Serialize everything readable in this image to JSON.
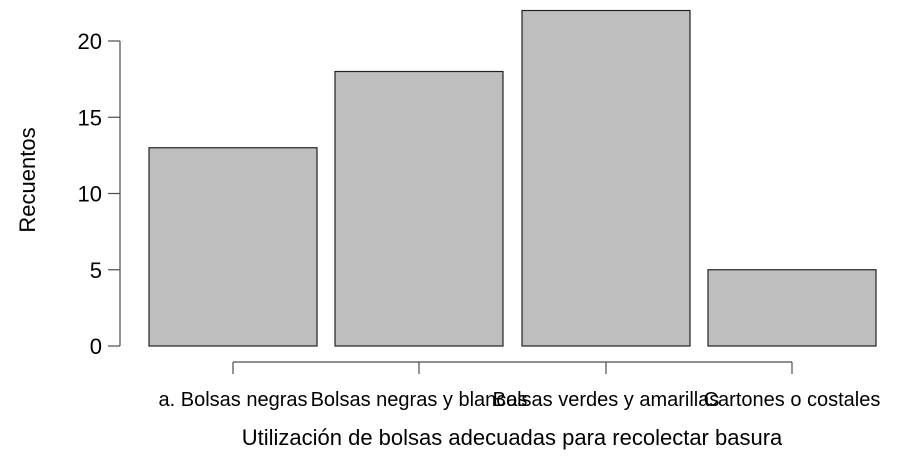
{
  "chart_data": {
    "type": "bar",
    "categories": [
      "a. Bolsas negras",
      "Bolsas negras y blancas",
      "Bolsas verdes y amarillas",
      "Cartones o costales"
    ],
    "values": [
      13,
      18,
      22,
      5
    ],
    "title": "",
    "xlabel": "Utilización de bolsas adecuadas para recolectar basura",
    "ylabel": "Recuentos",
    "ylim": [
      0,
      22
    ],
    "yticks": [
      0,
      5,
      10,
      15,
      20
    ],
    "bar_color": "#bebebe",
    "grid": false,
    "legend": "none"
  }
}
